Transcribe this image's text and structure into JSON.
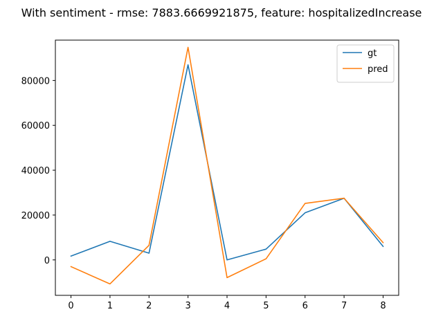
{
  "chart_data": {
    "type": "line",
    "title": "With sentiment - rmse: 7883.6669921875, feature: hospitalizedIncrease",
    "xlabel": "",
    "ylabel": "",
    "x": [
      0,
      1,
      2,
      3,
      4,
      5,
      6,
      7,
      8
    ],
    "xlim": [
      -0.4,
      8.4
    ],
    "ylim": [
      -15800,
      98000
    ],
    "xticks": [
      0,
      1,
      2,
      3,
      4,
      5,
      6,
      7,
      8
    ],
    "yticks": [
      0,
      20000,
      40000,
      60000,
      80000
    ],
    "grid": false,
    "legend_position": "top-right",
    "series": [
      {
        "name": "gt",
        "color": "#1f77b4",
        "values": [
          1700,
          8300,
          3000,
          87000,
          0,
          4800,
          21000,
          27500,
          6000
        ]
      },
      {
        "name": "pred",
        "color": "#ff7f0e",
        "values": [
          -3000,
          -10700,
          6500,
          94800,
          -7900,
          500,
          25200,
          27500,
          7700
        ]
      }
    ]
  }
}
